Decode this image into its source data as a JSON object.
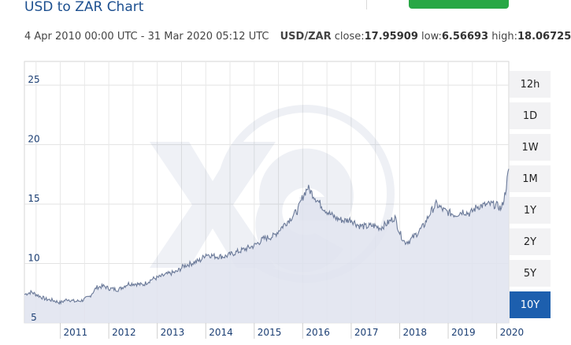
{
  "header": {
    "title": "USD to ZAR Chart"
  },
  "info": {
    "range": "4 Apr 2010 00:00 UTC - 31 Mar 2020 05:12 UTC",
    "pair": "USD/ZAR",
    "close_label": "close:",
    "close_value": "17.95909",
    "low_label": "low:",
    "low_value": "6.56693",
    "high_label": "high:",
    "high_value": "18.06725"
  },
  "periods": [
    "12h",
    "1D",
    "1W",
    "1M",
    "1Y",
    "2Y",
    "5Y",
    "10Y"
  ],
  "active_period": "10Y",
  "colors": {
    "line": "#6b7a99",
    "fill": "#dfe3ee",
    "accent": "#1d5fae",
    "button": "#28a745"
  },
  "chart_data": {
    "type": "area",
    "title": "USD to ZAR Chart",
    "xlabel": "",
    "ylabel": "",
    "ylim": [
      5,
      27
    ],
    "xlim": [
      2010.26,
      2020.25
    ],
    "y_ticks": [
      5,
      10,
      15,
      20,
      25
    ],
    "x_ticks": [
      {
        "value": 2011,
        "label": "2011"
      },
      {
        "value": 2012,
        "label": "2012"
      },
      {
        "value": 2013,
        "label": "2013"
      },
      {
        "value": 2014,
        "label": "2014"
      },
      {
        "value": 2015,
        "label": "2015"
      },
      {
        "value": 2016,
        "label": "2016"
      },
      {
        "value": 2017,
        "label": "2017"
      },
      {
        "value": 2018,
        "label": "2018"
      },
      {
        "value": 2019,
        "label": "2019"
      },
      {
        "value": 2020,
        "label": "2020"
      }
    ],
    "grid": true,
    "series": [
      {
        "x": [
          2010.26,
          2010.4,
          2010.55,
          2010.7,
          2010.85,
          2011.0,
          2011.15,
          2011.3,
          2011.45,
          2011.6,
          2011.75,
          2011.9,
          2012.0,
          2012.2,
          2012.4,
          2012.55,
          2012.7,
          2012.9,
          2013.0,
          2013.2,
          2013.4,
          2013.55,
          2013.7,
          2013.9,
          2014.0,
          2014.2,
          2014.4,
          2014.6,
          2014.8,
          2015.0,
          2015.2,
          2015.4,
          2015.6,
          2015.75,
          2015.9,
          2016.0,
          2016.1,
          2016.25,
          2016.4,
          2016.55,
          2016.7,
          2016.85,
          2017.0,
          2017.15,
          2017.3,
          2017.45,
          2017.6,
          2017.75,
          2017.9,
          2018.0,
          2018.1,
          2018.2,
          2018.35,
          2018.5,
          2018.62,
          2018.75,
          2018.9,
          2019.0,
          2019.15,
          2019.3,
          2019.45,
          2019.6,
          2019.75,
          2019.9,
          2020.0,
          2020.1,
          2020.18,
          2020.25
        ],
        "y": [
          7.4,
          7.6,
          7.3,
          7.0,
          6.9,
          6.7,
          7.0,
          6.8,
          6.9,
          7.2,
          8.0,
          8.1,
          7.9,
          7.8,
          8.3,
          8.3,
          8.2,
          8.7,
          8.8,
          9.1,
          9.3,
          9.8,
          10.0,
          10.3,
          10.8,
          10.6,
          10.6,
          10.9,
          11.2,
          11.5,
          12.1,
          12.3,
          13.2,
          13.8,
          14.5,
          15.6,
          16.4,
          15.6,
          14.8,
          14.2,
          13.8,
          13.6,
          13.7,
          13.2,
          13.1,
          13.2,
          13.0,
          13.4,
          13.9,
          12.6,
          11.8,
          11.9,
          12.5,
          13.2,
          14.2,
          15.0,
          14.5,
          14.3,
          14.1,
          14.4,
          14.2,
          14.8,
          14.9,
          15.0,
          14.9,
          14.6,
          16.0,
          17.96
        ]
      }
    ]
  }
}
